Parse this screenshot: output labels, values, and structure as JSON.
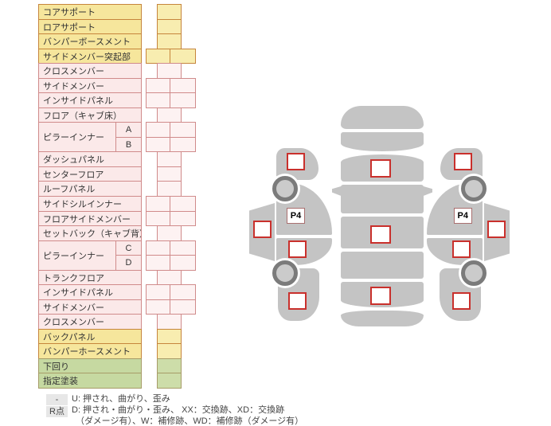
{
  "table": {
    "rows": [
      {
        "label": "コアサポート",
        "color": "yellow",
        "cells": "single"
      },
      {
        "label": "ロアサポート",
        "color": "yellow",
        "cells": "single"
      },
      {
        "label": "バンパーボースメント",
        "color": "yellow",
        "cells": "single"
      },
      {
        "label": "サイドメンバー突起部",
        "color": "yellow",
        "cells": "double"
      },
      {
        "label": "クロスメンバー",
        "color": "pink",
        "cells": "single"
      },
      {
        "label": "サイドメンバー",
        "color": "pink",
        "cells": "double"
      },
      {
        "label": "インサイドパネル",
        "color": "pink",
        "cells": "double"
      },
      {
        "label": "フロア（キャブ床）",
        "color": "pink",
        "cells": "single"
      },
      {
        "label": "ピラーインナー",
        "sub": "A",
        "pairFirst": true,
        "color": "pink",
        "cells": "double"
      },
      {
        "sub": "B",
        "color": "pink",
        "cells": "double"
      },
      {
        "label": "ダッシュパネル",
        "color": "pink",
        "cells": "single"
      },
      {
        "label": "センターフロア",
        "color": "pink",
        "cells": "single"
      },
      {
        "label": "ルーフパネル",
        "color": "pink",
        "cells": "single"
      },
      {
        "label": "サイドシルインナー",
        "color": "pink",
        "cells": "double"
      },
      {
        "label": "フロアサイドメンバー",
        "color": "pink",
        "cells": "double"
      },
      {
        "label": "セットバック（キャブ背）",
        "color": "pink",
        "cells": "single"
      },
      {
        "label": "ピラーインナー",
        "sub": "C",
        "pairFirst": true,
        "color": "pink",
        "cells": "double"
      },
      {
        "sub": "D",
        "color": "pink",
        "cells": "double"
      },
      {
        "label": "トランクフロア",
        "color": "pink",
        "cells": "single"
      },
      {
        "label": "インサイドパネル",
        "color": "pink",
        "cells": "double"
      },
      {
        "label": "サイドメンバー",
        "color": "pink",
        "cells": "double"
      },
      {
        "label": "クロスメンバー",
        "color": "pink",
        "cells": "single"
      },
      {
        "label": "バックパネル",
        "color": "yellow",
        "cells": "single"
      },
      {
        "label": "バンパーホースメント",
        "color": "yellow",
        "cells": "single"
      },
      {
        "label": "下回り",
        "color": "green",
        "cells": "single"
      },
      {
        "label": "指定塗装",
        "color": "green",
        "cells": "single"
      }
    ]
  },
  "diagram": {
    "p4": "P4"
  },
  "legend": {
    "row1_key": "-",
    "row1_text": "U: 押され、曲がり、歪み",
    "row2_key": "R点",
    "row2_text": "D: 押され・曲がり・歪み、 XX：交換跡、XD：交換跡",
    "row3_text": "（ダメージ有）、W：補修跡、WD：補修跡（ダメージ有）"
  },
  "colors": {
    "yellow_fill": "#F6E69C",
    "yellow_cell": "#F8EDB0",
    "yellow_border": "#C6853C",
    "pink_fill": "#FBE9E9",
    "pink_cell": "#FDF2F2",
    "pink_border": "#D08B8B",
    "green_fill": "#C6D9A1",
    "green_cell": "#CDDDA9",
    "green_border": "#A79C68",
    "body_gray": "#C4C4C4",
    "wheel_ring": "#7B7B7B",
    "wheel_hub": "#CBCBCB",
    "square_red": "#C9302C",
    "p4_border": "#A96F6F",
    "legend_key_bg": "#E7E7E7"
  }
}
